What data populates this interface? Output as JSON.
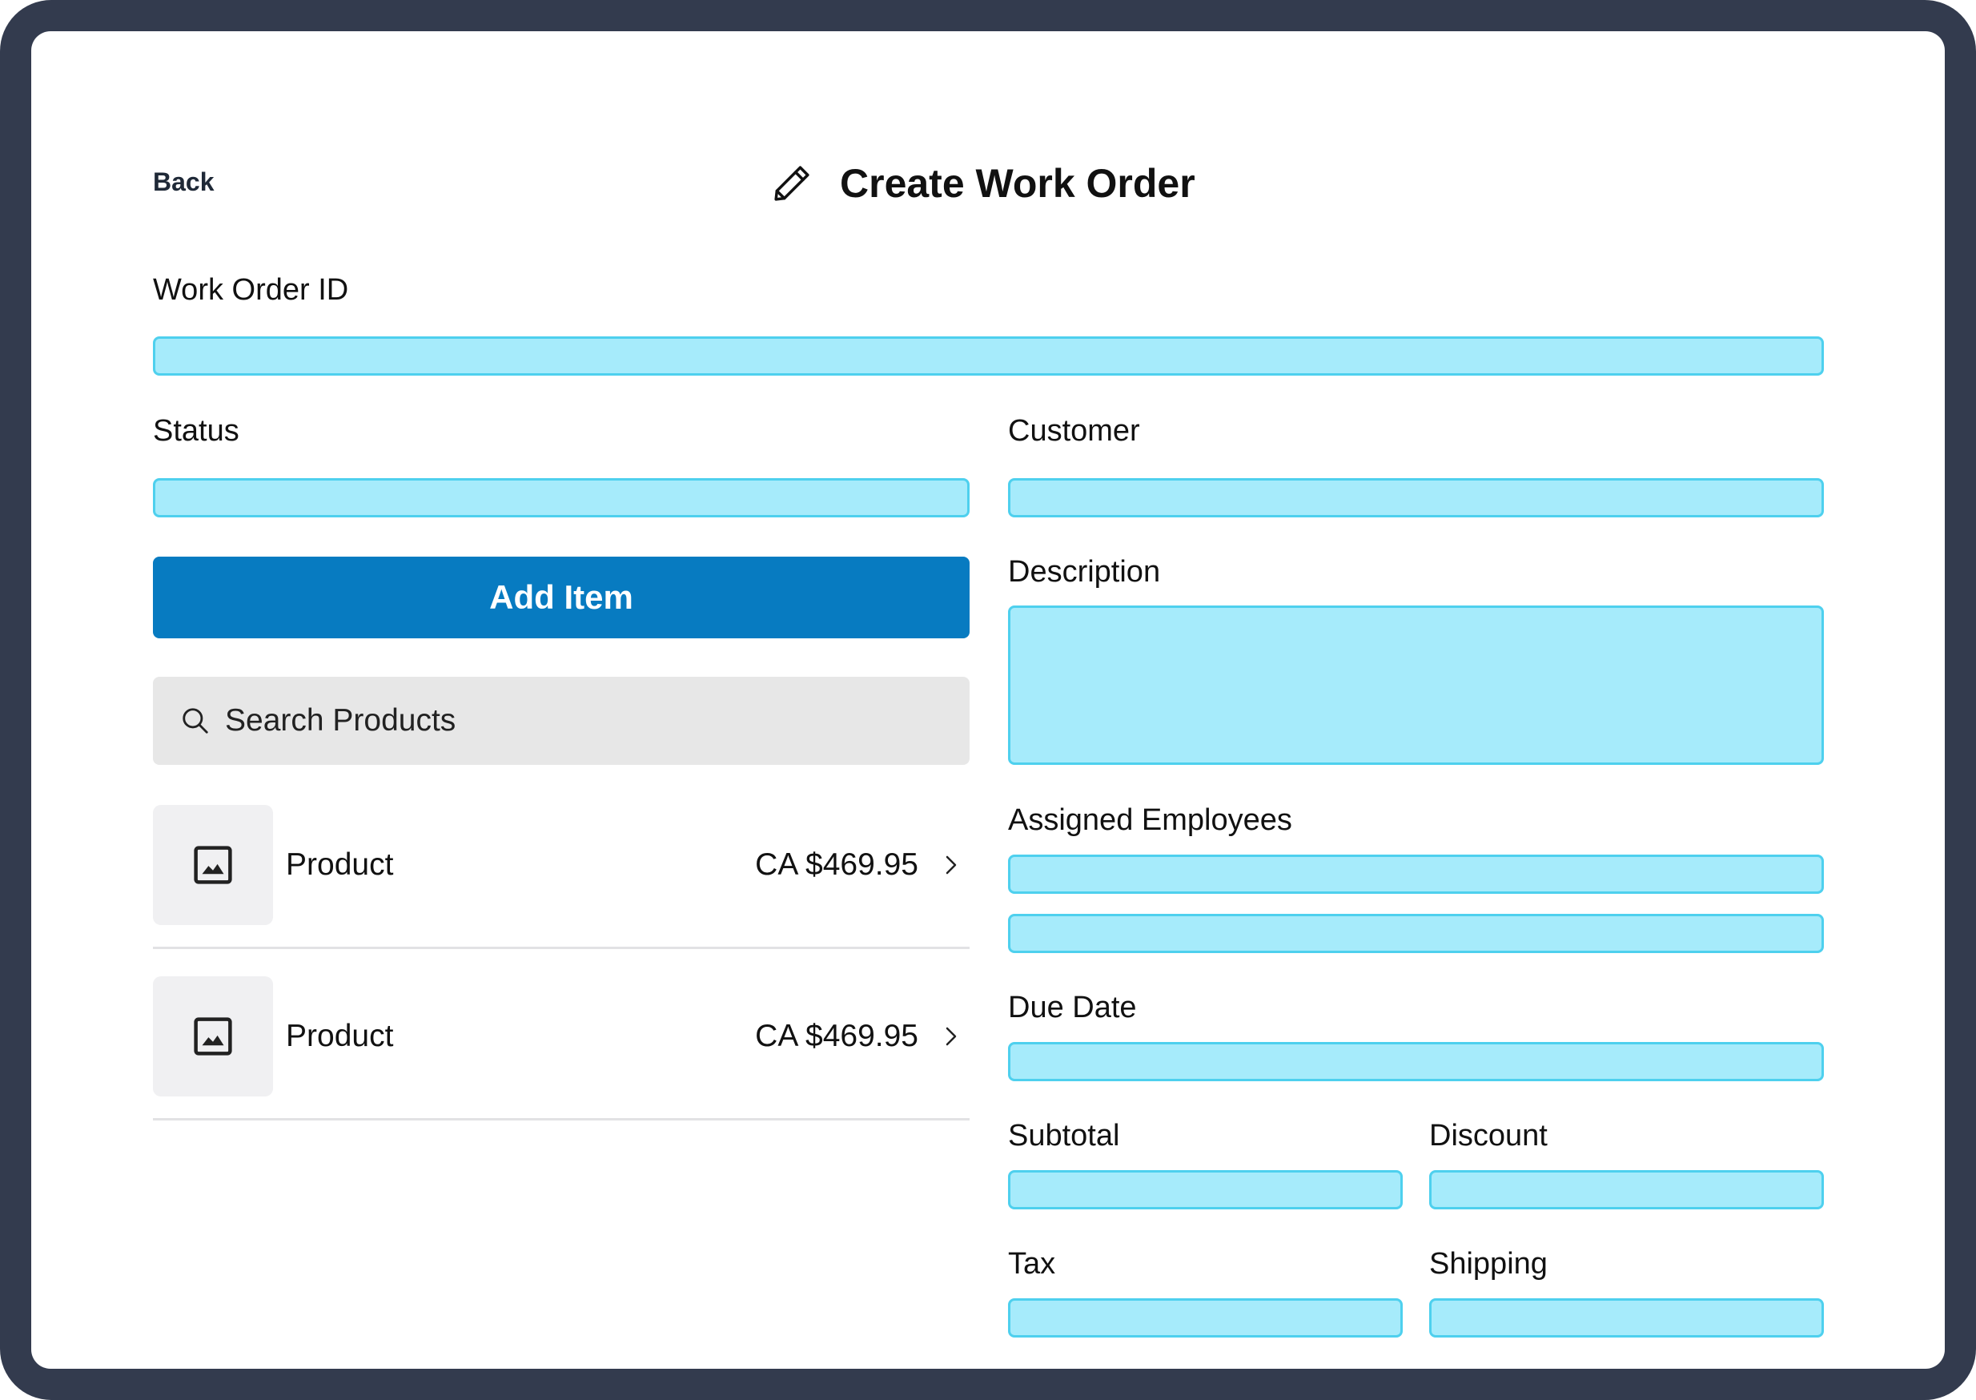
{
  "header": {
    "back_label": "Back",
    "title": "Create Work Order",
    "title_icon": "pencil-icon"
  },
  "form": {
    "work_order_id": {
      "label": "Work Order ID",
      "value": ""
    },
    "status": {
      "label": "Status",
      "value": ""
    },
    "customer": {
      "label": "Customer",
      "value": ""
    },
    "description": {
      "label": "Description",
      "value": ""
    },
    "assigned_employees": {
      "label": "Assigned Employees",
      "values": [
        "",
        ""
      ]
    },
    "due_date": {
      "label": "Due Date",
      "value": ""
    },
    "subtotal": {
      "label": "Subtotal",
      "value": ""
    },
    "discount": {
      "label": "Discount",
      "value": ""
    },
    "tax": {
      "label": "Tax",
      "value": ""
    },
    "shipping": {
      "label": "Shipping",
      "value": ""
    }
  },
  "items": {
    "add_label": "Add Item",
    "search_placeholder": "Search Products",
    "search_icon": "search-icon",
    "products": [
      {
        "name": "Product",
        "price": "CA $469.95",
        "icon": "image-icon"
      },
      {
        "name": "Product",
        "price": "CA $469.95",
        "icon": "image-icon"
      }
    ]
  },
  "colors": {
    "frame": "#333b4e",
    "field_fill": "#a6ebfb",
    "field_border": "#4ed0ee",
    "primary_button": "#077bc1",
    "search_bg": "#e7e7e7"
  }
}
